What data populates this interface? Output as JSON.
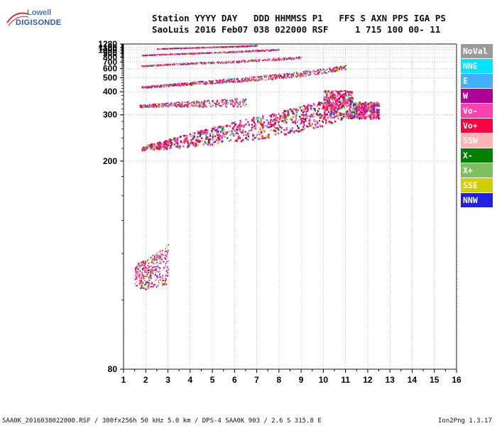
{
  "logo": {
    "line1": "Lowell",
    "line2": "DIGISONDE"
  },
  "header": {
    "line1": "Station YYYY DAY   DDD HHMMSS P1   FFS S AXN PPS IGA PS",
    "line2": "SaoLuis 2016 Feb07 038 022000 RSF     1 715 100 00- 11"
  },
  "footer": {
    "left": "SAA0K_2016038022000.RSF / 300fx256h 50 kHz 5.0 km / DPS-4 SAA0K 903 / 2.6 S 315.8 E",
    "right": "Ion2Png 1.3.17"
  },
  "legend": [
    {
      "label": "NoVal",
      "color": "#9a9a9a"
    },
    {
      "label": "NNE",
      "color": "#00e5ff"
    },
    {
      "label": "E",
      "color": "#40b0ff"
    },
    {
      "label": "W",
      "color": "#b0009a"
    },
    {
      "label": "Vo-",
      "color": "#ff40b0"
    },
    {
      "label": "Vo+",
      "color": "#ff0040"
    },
    {
      "label": "SSW",
      "color": "#ffb4b4"
    },
    {
      "label": "X-",
      "color": "#008000"
    },
    {
      "label": "X+",
      "color": "#7cc060"
    },
    {
      "label": "SSE",
      "color": "#d0d000"
    },
    {
      "label": "NNW",
      "color": "#2020e0"
    }
  ],
  "chart_data": {
    "type": "scatter",
    "title": "",
    "xlabel": "",
    "ylabel": "",
    "xlim": [
      1,
      16
    ],
    "ylim": [
      80,
      1280
    ],
    "x_ticks": [
      "1",
      "2",
      "3",
      "4",
      "5",
      "6",
      "7",
      "8",
      "9",
      "10",
      "11",
      "12",
      "13",
      "14",
      "15",
      "16"
    ],
    "y_ticks": [
      "80",
      "200",
      "300",
      "400",
      "500",
      "600",
      "700",
      "800",
      "900",
      "1000",
      "1100",
      "1280"
    ],
    "y_scale": "reciprocal",
    "grid": true,
    "traces": [
      {
        "name": "o-trace 1st hop",
        "points": [
          [
            1.8,
            220
          ],
          [
            3,
            226
          ],
          [
            4,
            232
          ],
          [
            5,
            240
          ],
          [
            6,
            248
          ],
          [
            7,
            256
          ],
          [
            8,
            266
          ],
          [
            9,
            280
          ],
          [
            10,
            296
          ],
          [
            11,
            318
          ]
        ]
      },
      {
        "name": "o-trace 2nd hop",
        "points": [
          [
            1.8,
            428
          ],
          [
            3,
            440
          ],
          [
            4,
            452
          ],
          [
            5,
            464
          ],
          [
            6,
            476
          ],
          [
            7,
            492
          ],
          [
            8,
            510
          ],
          [
            9,
            534
          ],
          [
            10,
            565
          ],
          [
            11,
            610
          ]
        ]
      },
      {
        "name": "o-trace 3rd hop",
        "points": [
          [
            1.8,
            640
          ],
          [
            3,
            660
          ],
          [
            4,
            676
          ],
          [
            5,
            690
          ],
          [
            6,
            708
          ],
          [
            7,
            730
          ],
          [
            8,
            755
          ],
          [
            9,
            790
          ]
        ]
      },
      {
        "name": "o-trace 4th hop",
        "points": [
          [
            1.8,
            850
          ],
          [
            3,
            878
          ],
          [
            4,
            900
          ],
          [
            5,
            925
          ],
          [
            6,
            950
          ],
          [
            7,
            985
          ],
          [
            8,
            1020
          ]
        ]
      },
      {
        "name": "o-trace 5th hop",
        "points": [
          [
            2.5,
            1060
          ],
          [
            3.5,
            1090
          ],
          [
            4.5,
            1118
          ],
          [
            5.5,
            1150
          ],
          [
            6.5,
            1180
          ],
          [
            7,
            1210
          ]
        ]
      },
      {
        "name": "Es trace",
        "points": [
          [
            1.7,
            330
          ],
          [
            2.5,
            334
          ],
          [
            3.5,
            336
          ],
          [
            4.5,
            338
          ],
          [
            5.5,
            340
          ],
          [
            6.5,
            342
          ]
        ]
      },
      {
        "name": "low trace",
        "points": [
          [
            1.5,
            108
          ],
          [
            2,
            108
          ],
          [
            2.5,
            110
          ],
          [
            3,
            112
          ]
        ]
      }
    ]
  }
}
